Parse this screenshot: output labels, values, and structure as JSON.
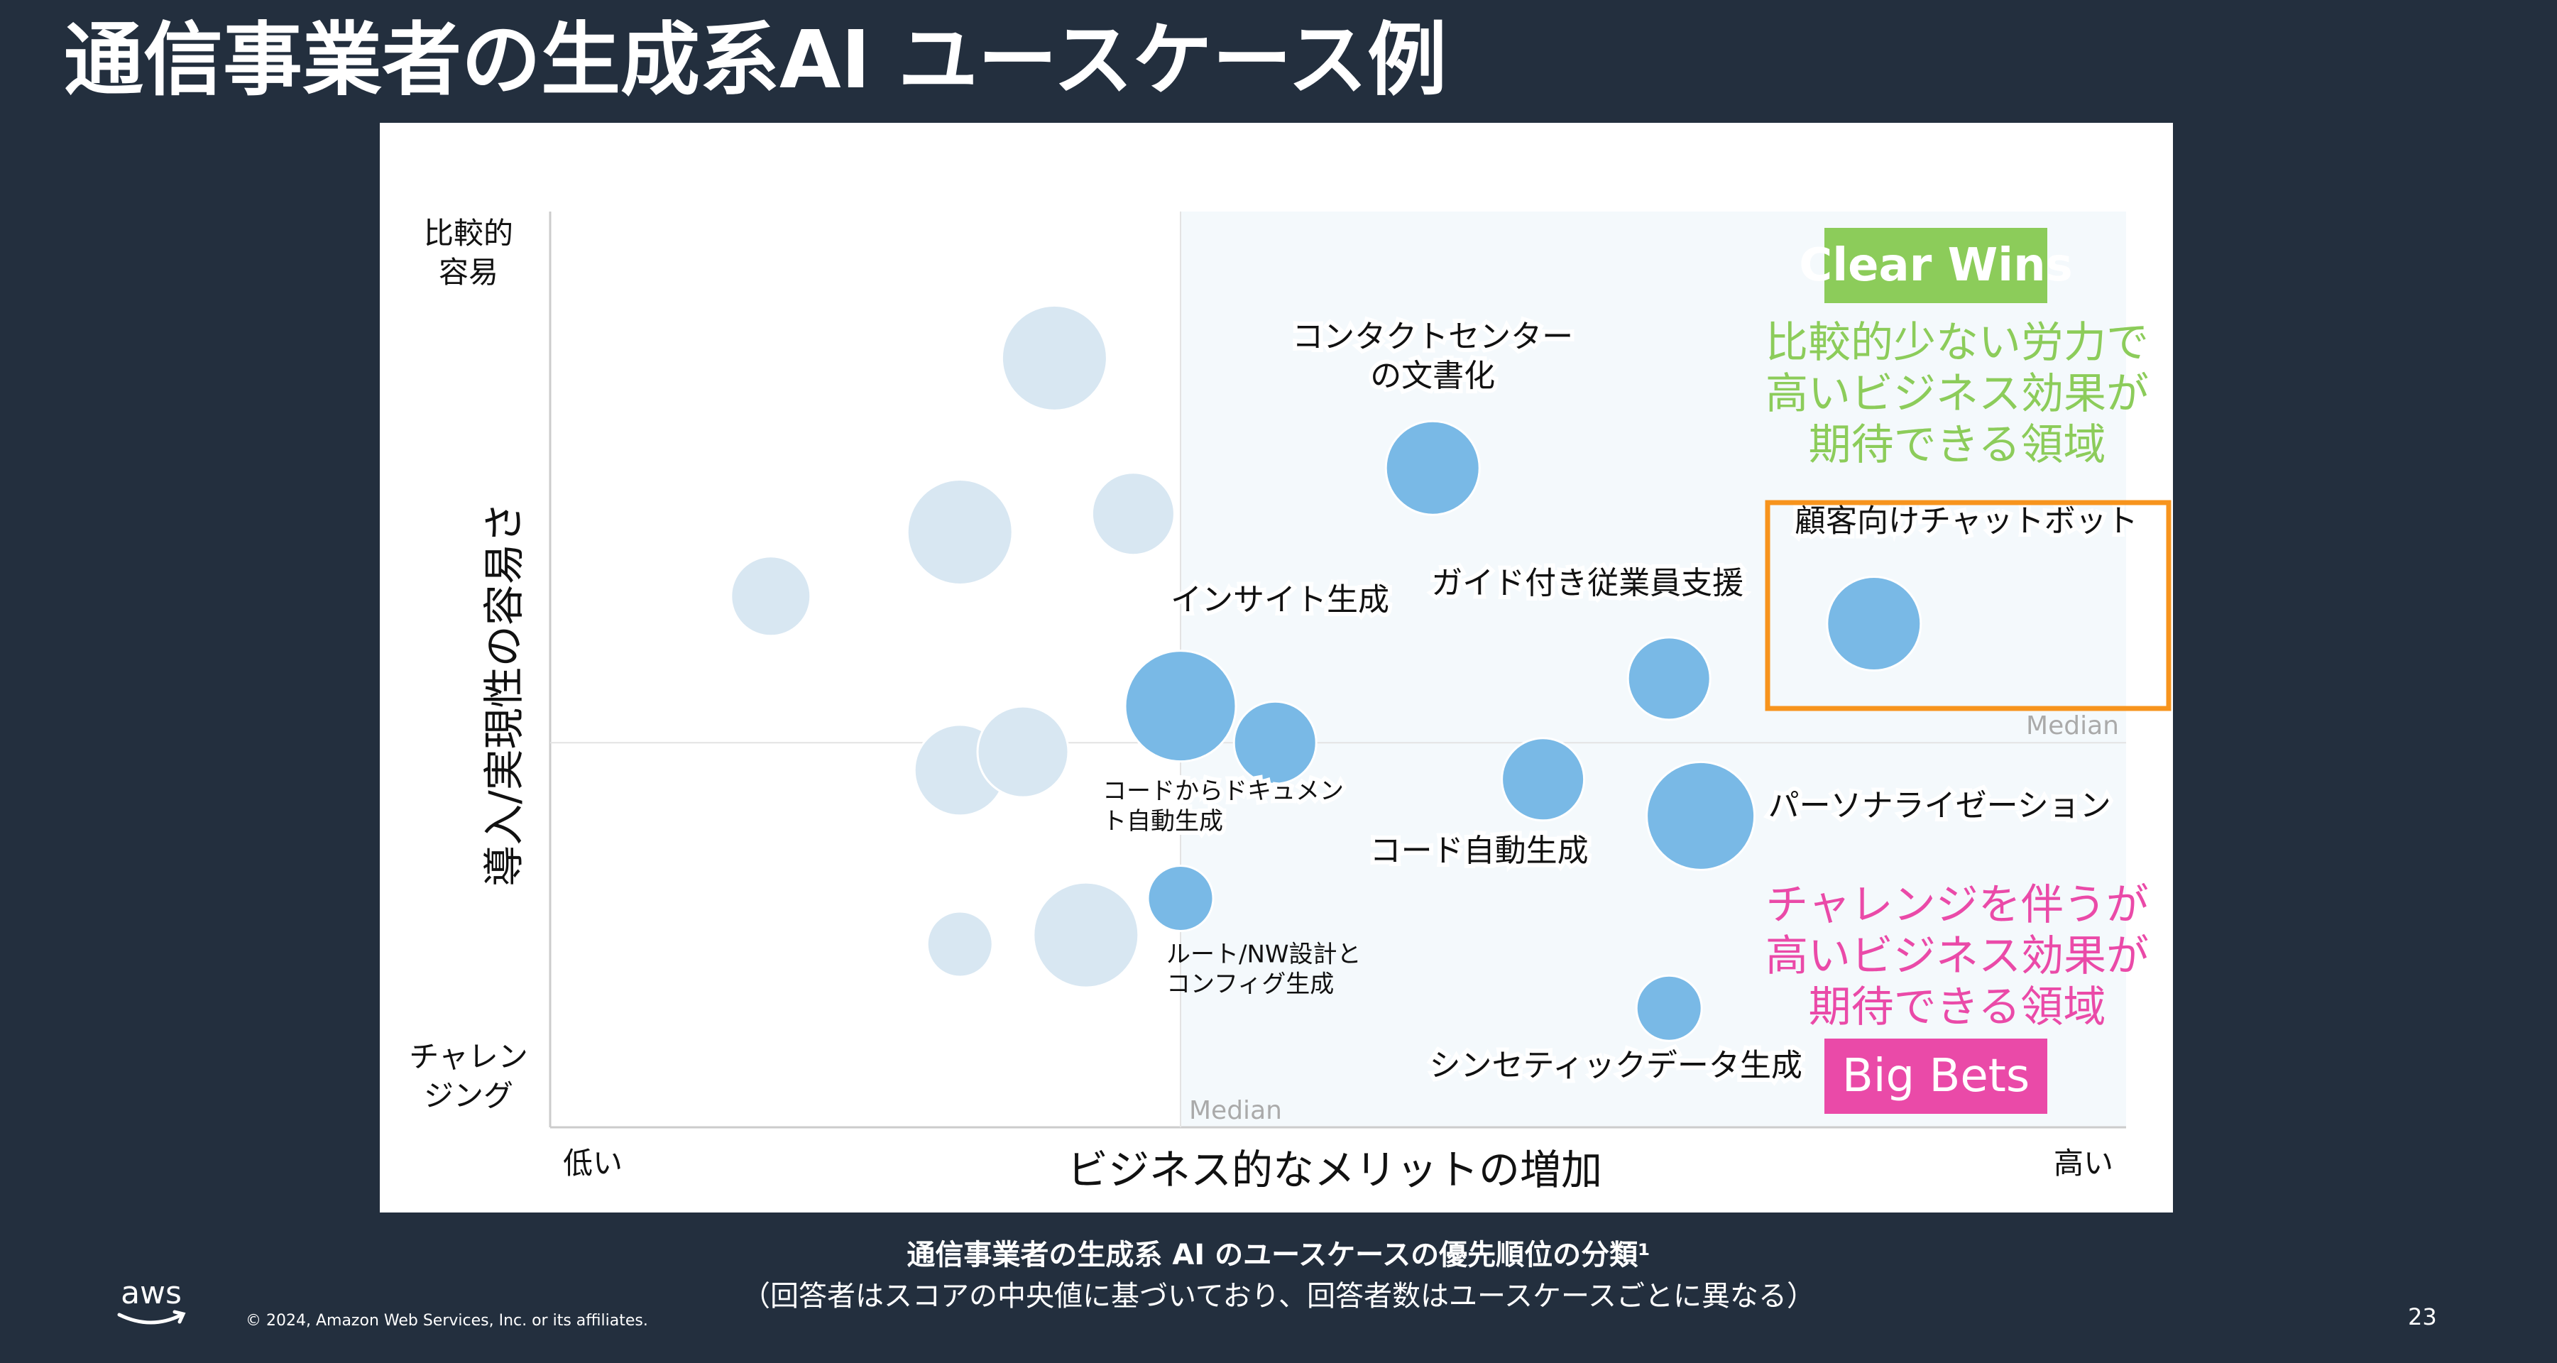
{
  "slide": {
    "title": "通信事業者の生成系AI ユースケース例",
    "caption": "通信事業者の生成系 AI のユースケースの優先順位の分類¹",
    "caption_sub": "（回答者はスコアの中央値に基づいており、回答者数はユースケースごとに異なる）",
    "copyright": "© 2024, Amazon Web Services, Inc. or its affiliates.",
    "page_number": "23",
    "logo_text": "aws"
  },
  "chart_data": {
    "type": "scatter",
    "title": "",
    "xlabel": "ビジネス的なメリットの増加",
    "ylabel": "導入/実現性の容易さ",
    "x_tick_low": "低い",
    "x_tick_high": "高い",
    "y_tick_high_line1": "比較的",
    "y_tick_high_line2": "容易",
    "y_tick_low_line1": "チャレン",
    "y_tick_low_line2": "ジング",
    "xlim": [
      0,
      100
    ],
    "ylim": [
      0,
      100
    ],
    "median_x": 40,
    "median_y": 42,
    "median_label_x": "Median",
    "median_label_y": "Median",
    "colors": {
      "highlight": "#79b9e6",
      "faded": "#d8e7f2",
      "quadrant_fill": "#f4f9fc",
      "clear_wins": "#8ccc5a",
      "big_bets": "#ea4aa8",
      "callout_border": "#f7941d",
      "axis": "#cccccc"
    },
    "quadrants": {
      "clear_wins": {
        "label": "Clear Wins",
        "description_lines": [
          "比較的少ない労力で",
          "高いビジネス効果が",
          "期待できる領域"
        ]
      },
      "big_bets": {
        "label": "Big Bets",
        "description_lines": [
          "チャレンジを伴うが",
          "高いビジネス効果が",
          "期待できる領域"
        ]
      }
    },
    "series": [
      {
        "points": [
          {
            "x": 14,
            "y": 58,
            "size": 28,
            "label_lines": []
          },
          {
            "x": 26,
            "y": 65,
            "size": 37,
            "label_lines": []
          },
          {
            "x": 32,
            "y": 84,
            "size": 37,
            "label_lines": []
          },
          {
            "x": 37,
            "y": 67,
            "size": 29,
            "label_lines": []
          },
          {
            "x": 26,
            "y": 39,
            "size": 32,
            "label_lines": []
          },
          {
            "x": 30,
            "y": 41,
            "size": 32,
            "label_lines": []
          },
          {
            "x": 26,
            "y": 20,
            "size": 23,
            "label_lines": []
          },
          {
            "x": 34,
            "y": 21,
            "size": 37,
            "label_lines": []
          }
        ]
      },
      {
        "points": [
          {
            "x": 56,
            "y": 72,
            "size": 33,
            "label_lines": [
              "コンタクトセンター",
              "の文書化"
            ]
          },
          {
            "x": 84,
            "y": 55,
            "size": 33,
            "label_lines": [
              "顧客向けチャットボット"
            ]
          },
          {
            "x": 40,
            "y": 46,
            "size": 39,
            "label_lines": [
              "インサイト生成"
            ]
          },
          {
            "x": 46,
            "y": 42,
            "size": 29,
            "label_lines": []
          },
          {
            "x": 71,
            "y": 49,
            "size": 29,
            "label_lines": [
              "ガイド付き従業員支援"
            ]
          },
          {
            "x": 63,
            "y": 38,
            "size": 29,
            "label_lines": [
              "コード自動生成"
            ]
          },
          {
            "x": 73,
            "y": 34,
            "size": 38,
            "label_lines": [
              "パーソナライゼーション"
            ]
          },
          {
            "x": 40,
            "y": 25,
            "size": 23,
            "label_lines": [
              "コードからドキュメン",
              "ト自動生成"
            ]
          },
          {
            "x": 71,
            "y": 13,
            "size": 23,
            "label_lines": [
              "シンセティックデータ生成"
            ]
          }
        ]
      }
    ],
    "extra_labels": {
      "route_config_lines": [
        "ルート/NW設計と",
        "コンフィグ生成"
      ]
    }
  }
}
